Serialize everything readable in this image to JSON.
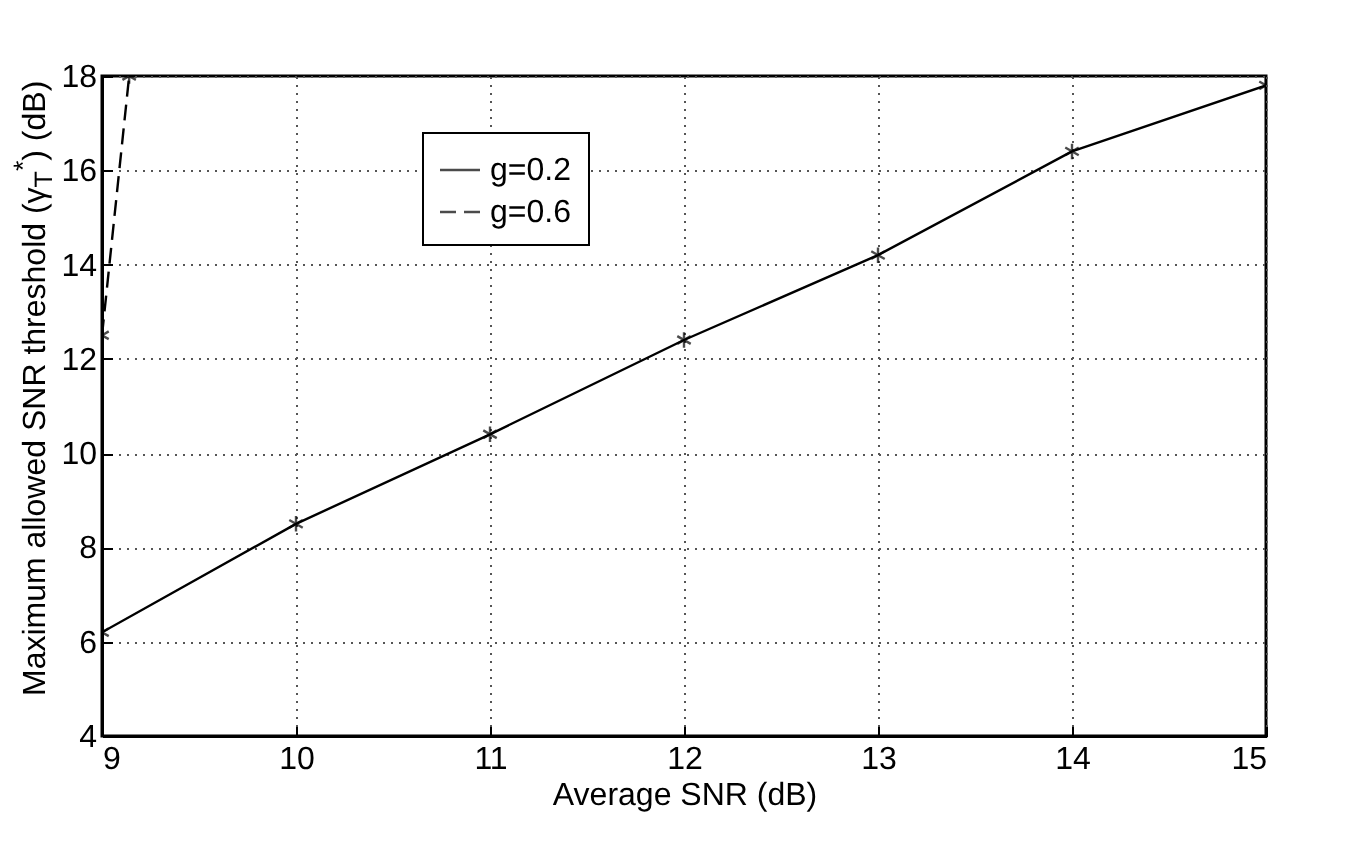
{
  "chart_data": {
    "type": "line",
    "xlabel": "Average SNR (dB)",
    "ylabel": "Maximum allowed SNR threshold (γ$_{T}$$^{*}$) (dB)",
    "x": [
      9,
      10,
      11,
      12,
      13,
      14,
      15
    ],
    "series": [
      {
        "name": "g=0.2",
        "color": "#000000",
        "line_style": "solid",
        "values": [
          6.2,
          8.5,
          10.4,
          12.4,
          14.2,
          16.4,
          17.8
        ]
      },
      {
        "name": "g=0.6",
        "color": "#000000",
        "line_style": "dashed",
        "x": [
          9,
          9.14
        ],
        "values": [
          12.5,
          18
        ]
      }
    ],
    "xlim": [
      9,
      15
    ],
    "xticks": [
      9,
      10,
      11,
      12,
      13,
      14,
      15
    ],
    "ylim": [
      4,
      18
    ],
    "yticks": [
      4,
      6,
      8,
      10,
      12,
      14,
      16,
      18
    ],
    "grid": true,
    "legend": "top left",
    "marker": "cross"
  }
}
